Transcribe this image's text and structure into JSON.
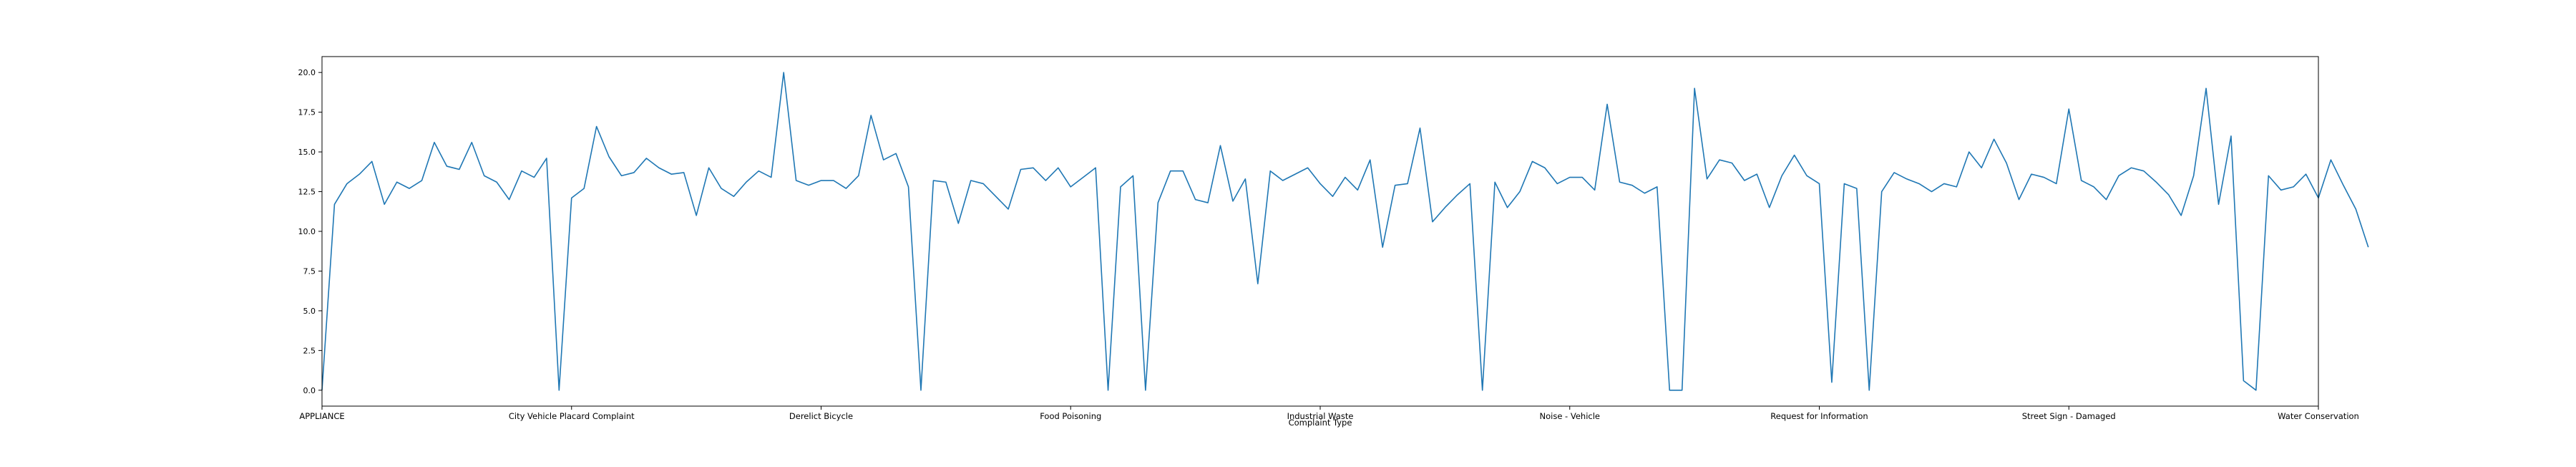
{
  "chart_data": {
    "type": "line",
    "title": "",
    "xlabel": "Complaint Type",
    "ylabel": "",
    "xlim": [
      0,
      160
    ],
    "ylim": [
      -1,
      21
    ],
    "yticks": [
      0.0,
      2.5,
      5.0,
      7.5,
      10.0,
      12.5,
      15.0,
      17.5,
      20.0
    ],
    "ytick_labels": [
      "0.0",
      "2.5",
      "5.0",
      "7.5",
      "10.0",
      "12.5",
      "15.0",
      "17.5",
      "20.0"
    ],
    "xticks": [
      0,
      20,
      40,
      60,
      80,
      100,
      120,
      140,
      160
    ],
    "xtick_labels": [
      "APPLIANCE",
      "City Vehicle Placard Complaint",
      "Derelict Bicycle",
      "Food Poisoning",
      "Industrial Waste",
      "Noise - Vehicle",
      "Request for Information",
      "Street Sign - Damaged",
      "Water Conservation"
    ],
    "grid": false,
    "legend": "none",
    "series": [
      {
        "color": "#1f77b4",
        "values": [
          0.0,
          11.7,
          13.0,
          13.6,
          14.4,
          11.7,
          13.1,
          12.7,
          13.2,
          15.6,
          14.1,
          13.9,
          15.6,
          13.5,
          13.1,
          12.0,
          13.8,
          13.4,
          14.6,
          0.0,
          12.1,
          12.7,
          16.6,
          14.7,
          13.5,
          13.7,
          14.6,
          14.0,
          13.6,
          13.7,
          11.0,
          14.0,
          12.7,
          12.2,
          13.1,
          13.8,
          13.4,
          20.0,
          13.2,
          12.9,
          13.2,
          13.2,
          12.7,
          13.5,
          17.3,
          14.5,
          14.9,
          12.8,
          0.0,
          13.2,
          13.1,
          10.5,
          13.2,
          13.0,
          12.2,
          11.4,
          13.9,
          14.0,
          13.2,
          14.0,
          12.8,
          13.4,
          14.0,
          0.0,
          12.8,
          13.5,
          0.0,
          11.8,
          13.8,
          13.8,
          12.0,
          11.8,
          15.4,
          11.9,
          13.3,
          6.7,
          13.8,
          13.2,
          13.6,
          14.0,
          13.0,
          12.2,
          13.4,
          12.6,
          14.5,
          9.0,
          12.9,
          13.0,
          16.5,
          10.6,
          11.5,
          12.3,
          13.0,
          0.0,
          13.1,
          11.5,
          12.5,
          14.4,
          14.0,
          13.0,
          13.4,
          13.4,
          12.6,
          18.0,
          13.1,
          12.9,
          12.4,
          12.8,
          0.0,
          0.0,
          19.0,
          13.3,
          14.5,
          14.3,
          13.2,
          13.6,
          11.5,
          13.5,
          14.8,
          13.5,
          13.0,
          0.5,
          13.0,
          12.7,
          0.0,
          12.5,
          13.7,
          13.3,
          13.0,
          12.5,
          13.0,
          12.8,
          15.0,
          14.0,
          15.8,
          14.3,
          12.0,
          13.6,
          13.4,
          13.0,
          17.7,
          13.2,
          12.8,
          12.0,
          13.5,
          14.0,
          13.8,
          13.1,
          12.3,
          11.0,
          13.5,
          19.0,
          11.7,
          16.0,
          0.6,
          0.0,
          13.5,
          12.6,
          12.8,
          13.6,
          12.1,
          14.5,
          12.9,
          11.4,
          9.0
        ]
      }
    ]
  }
}
